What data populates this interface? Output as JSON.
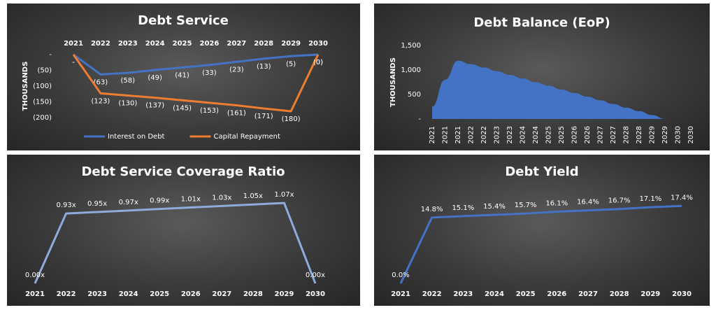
{
  "chart_data": [
    {
      "type": "line",
      "title": "Debt Service",
      "y_label": "THOUSANDS",
      "categories": [
        "2021",
        "2022",
        "2023",
        "2024",
        "2025",
        "2026",
        "2027",
        "2028",
        "2029",
        "2030"
      ],
      "series": [
        {
          "name": "Interest on Debt",
          "color": "#4472c4",
          "values": [
            0,
            -63,
            -58,
            -49,
            -41,
            -33,
            -23,
            -13,
            -5,
            0
          ],
          "value_labels": [
            "-",
            "(63)",
            "(58)",
            "(49)",
            "(41)",
            "(33)",
            "(23)",
            "(13)",
            "(5)",
            "(0)"
          ]
        },
        {
          "name": "Capital Repayment",
          "color": "#ed7d31",
          "values": [
            0,
            -123,
            -130,
            -137,
            -145,
            -153,
            -161,
            -171,
            -180,
            0
          ],
          "value_labels": [
            "-",
            "(123)",
            "(130)",
            "(137)",
            "(145)",
            "(153)",
            "(161)",
            "(171)",
            "(180)",
            "(0)"
          ]
        }
      ],
      "ylim": [
        -200,
        0
      ],
      "yticks": [
        {
          "value": 0,
          "label": "-"
        },
        {
          "value": -50,
          "label": "(50)"
        },
        {
          "value": -100,
          "label": "(100)"
        },
        {
          "value": -150,
          "label": "(150)"
        },
        {
          "value": -200,
          "label": "(200)"
        }
      ],
      "legend": "bottom",
      "label_color": "#ff2a2a"
    },
    {
      "type": "area",
      "title": "Debt Balance (EoP)",
      "y_label": "THOUSANDS",
      "categories": [
        "2021",
        "2021",
        "2021",
        "2022",
        "2022",
        "2023",
        "2023",
        "2024",
        "2024",
        "2025",
        "2025",
        "2026",
        "2026",
        "2027",
        "2027",
        "2028",
        "2028",
        "2029",
        "2029",
        "2030",
        "2030"
      ],
      "series": [
        {
          "color": "#4472c4",
          "values": [
            250,
            800,
            1190,
            1120,
            1050,
            975,
            900,
            825,
            750,
            680,
            600,
            530,
            455,
            380,
            305,
            230,
            160,
            80,
            0,
            0,
            0
          ]
        }
      ],
      "ylim": [
        0,
        1500
      ],
      "yticks": [
        {
          "value": 0,
          "label": "-"
        },
        500,
        {
          "value": 1000,
          "label": "1,000"
        },
        {
          "value": 1500,
          "label": "1,500"
        }
      ]
    },
    {
      "type": "line",
      "title": "Debt Service Coverage Ratio",
      "categories": [
        "2021",
        "2022",
        "2023",
        "2024",
        "2025",
        "2026",
        "2027",
        "2028",
        "2029",
        "2030"
      ],
      "series": [
        {
          "color": "#8faadc",
          "values": [
            0,
            0.93,
            0.95,
            0.97,
            0.99,
            1.01,
            1.03,
            1.05,
            1.07,
            0
          ],
          "value_labels": [
            "0.00x",
            "0.93x",
            "0.95x",
            "0.97x",
            "0.99x",
            "1.01x",
            "1.03x",
            "1.05x",
            "1.07x",
            "0.00x"
          ]
        }
      ],
      "ylim": [
        0,
        1.35
      ],
      "label_color": "#ffffff"
    },
    {
      "type": "line",
      "title": "Debt Yield",
      "categories": [
        "2021",
        "2022",
        "2023",
        "2024",
        "2025",
        "2026",
        "2027",
        "2028",
        "2029",
        "2030"
      ],
      "series": [
        {
          "color": "#4472c4",
          "values": [
            0,
            14.8,
            15.1,
            15.4,
            15.7,
            16.1,
            16.4,
            16.7,
            17.1,
            17.4
          ],
          "value_labels": [
            "0.0%",
            "14.8%",
            "15.1%",
            "15.4%",
            "15.7%",
            "16.1%",
            "16.4%",
            "16.7%",
            "17.1%",
            "17.4%"
          ]
        }
      ],
      "ylim": [
        0,
        22
      ],
      "label_color": "#9dc3e6"
    }
  ]
}
